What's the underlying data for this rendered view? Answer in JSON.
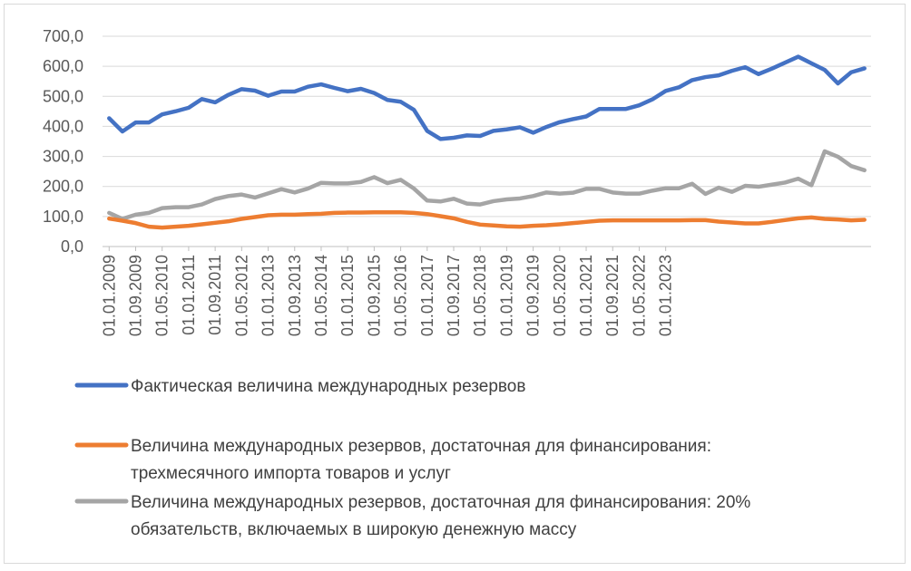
{
  "chart_data": {
    "type": "line",
    "title": "",
    "xlabel": "",
    "ylabel": "",
    "ylim": [
      0,
      700
    ],
    "yticks": [
      "0,0",
      "100,0",
      "200,0",
      "300,0",
      "400,0",
      "500,0",
      "600,0",
      "700,0"
    ],
    "ytick_values": [
      0,
      100,
      200,
      300,
      400,
      500,
      600,
      700
    ],
    "grid": "horizontal",
    "x_tick_labels": [
      "01.01.2009",
      "01.09.2009",
      "01.05.2010",
      "01.01.2011",
      "01.09.2011",
      "01.05.2012",
      "01.01.2013",
      "01.09.2013",
      "01.05.2014",
      "01.01.2015",
      "01.09.2015",
      "01.05.2016",
      "01.01.2017",
      "01.09.2017",
      "01.05.2018",
      "01.01.2019",
      "01.09.2019",
      "01.05.2020",
      "01.01.2021",
      "01.09.2021",
      "01.05.2022",
      "01.01.2023"
    ],
    "x_tick_every": 2,
    "point_count": 58,
    "legend_position": "bottom",
    "series": [
      {
        "name": "Фактическая величина международных резервов",
        "legend_lines": [
          "Фактическая величина международных резервов"
        ],
        "color": "#4472c4",
        "values": [
          427,
          383,
          413,
          413,
          440,
          450,
          462,
          491,
          480,
          505,
          524,
          519,
          502,
          516,
          516,
          532,
          540,
          528,
          517,
          525,
          511,
          488,
          482,
          455,
          385,
          358,
          362,
          370,
          368,
          385,
          390,
          397,
          379,
          398,
          414,
          424,
          433,
          458,
          458,
          458,
          470,
          490,
          518,
          530,
          554,
          564,
          570,
          585,
          597,
          574,
          592,
          612,
          632,
          610,
          588,
          543,
          580,
          593
        ]
      },
      {
        "name": "Величина международных резервов, достаточная для финансирования: трехмесячного импорта товаров и услуг",
        "legend_lines": [
          "Величина международных резервов, достаточная для финансирования:",
          "трехмесячного импорта товаров и услуг"
        ],
        "color": "#ed7d31",
        "values": [
          93,
          86,
          78,
          66,
          63,
          66,
          69,
          74,
          79,
          84,
          92,
          98,
          104,
          106,
          106,
          108,
          109,
          112,
          113,
          113,
          114,
          114,
          114,
          112,
          108,
          101,
          94,
          82,
          73,
          70,
          67,
          66,
          69,
          71,
          74,
          78,
          82,
          86,
          87,
          87,
          87,
          87,
          87,
          87,
          88,
          88,
          83,
          80,
          77,
          77,
          82,
          88,
          94,
          97,
          92,
          90,
          87,
          89
        ]
      },
      {
        "name": "Величина международных резервов, достаточная для финансирования: 20% обязательств, включаемых в широкую денежную массу",
        "legend_lines": [
          "Величина международных резервов, достаточная для финансирования: 20%",
          "обязательств, включаемых в широкую денежную массу"
        ],
        "color": "#a5a5a5",
        "values": [
          112,
          92,
          106,
          112,
          128,
          131,
          131,
          140,
          158,
          168,
          173,
          163,
          177,
          191,
          180,
          193,
          212,
          210,
          210,
          215,
          231,
          211,
          222,
          193,
          153,
          150,
          159,
          143,
          140,
          151,
          157,
          160,
          168,
          180,
          176,
          179,
          192,
          192,
          180,
          176,
          176,
          186,
          194,
          194,
          209,
          175,
          196,
          182,
          202,
          199,
          206,
          213,
          226,
          204,
          317,
          299,
          268,
          254
        ]
      }
    ]
  }
}
